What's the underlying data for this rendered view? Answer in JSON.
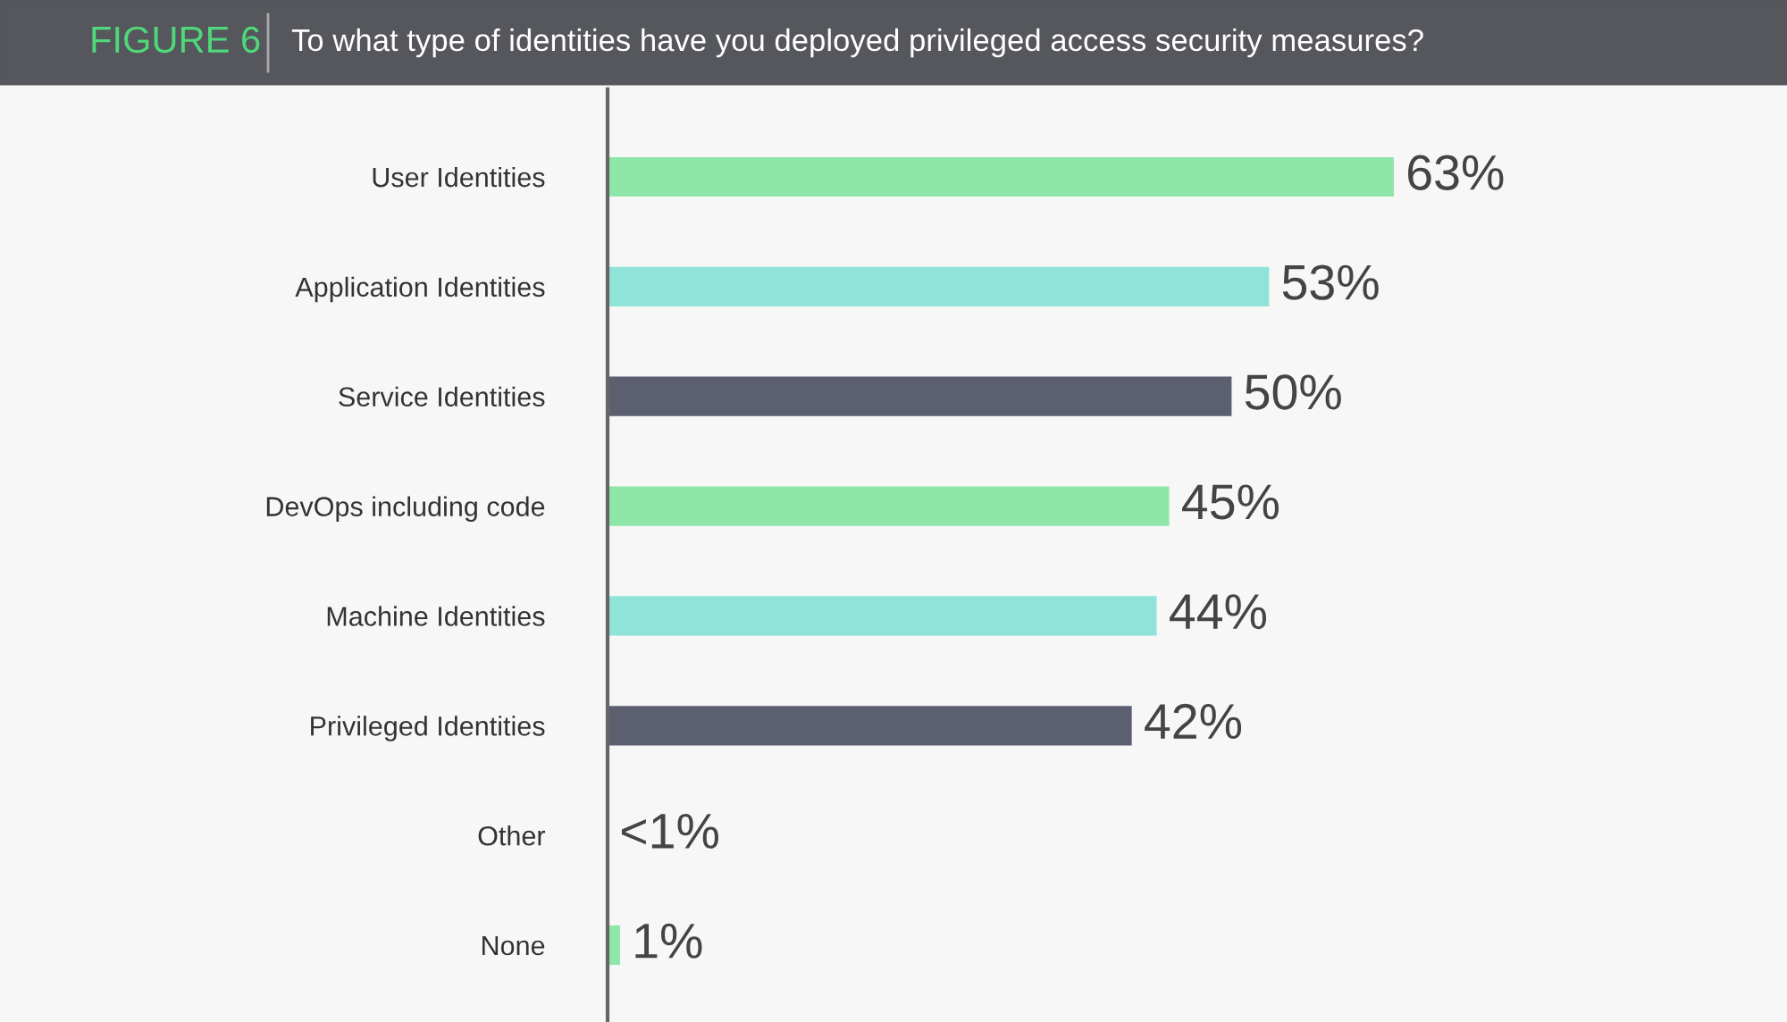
{
  "chart_data": {
    "type": "bar",
    "orientation": "horizontal",
    "title": "FIGURE 6",
    "subtitle": "To what type of identities have you deployed privileged access security measures?",
    "categories": [
      "User Identities",
      "Application Identities",
      "Service Identities",
      "DevOps including code",
      "Machine Identities",
      "Privileged Identities",
      "Other",
      "None"
    ],
    "values": [
      63,
      53,
      50,
      45,
      44,
      42,
      null,
      1
    ],
    "value_labels": [
      "63%",
      "53%",
      "50%",
      "45%",
      "44%",
      "42%",
      "<1%",
      "1%"
    ],
    "colors": [
      "#8ee6a8",
      "#8fe3d8",
      "#5c5f70",
      "#8ee6a8",
      "#8fe3d8",
      "#5c5f70",
      "#5c5f70",
      "#8ee6a8"
    ],
    "grid": false,
    "legend": false
  }
}
